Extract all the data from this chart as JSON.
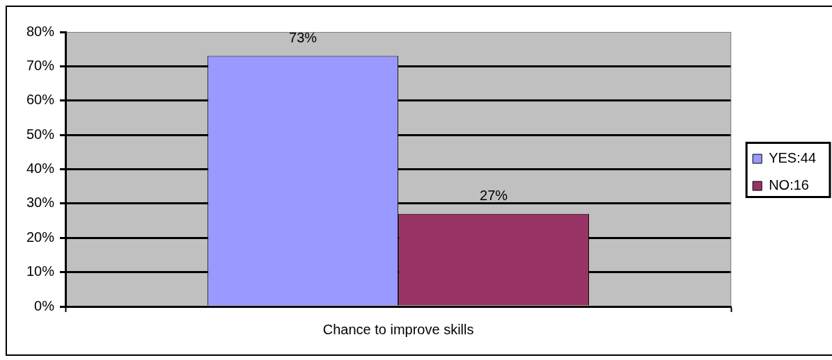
{
  "chart_data": {
    "type": "bar",
    "categories": [
      "Chance to improve skills"
    ],
    "series": [
      {
        "name": "YES:44",
        "color": "#9999ff",
        "values": [
          73
        ],
        "value_labels": [
          "73%"
        ]
      },
      {
        "name": "NO:16",
        "color": "#993366",
        "values": [
          27
        ],
        "value_labels": [
          "27%"
        ]
      }
    ],
    "ylim": [
      0,
      80
    ],
    "yticks": [
      {
        "value": 0,
        "label": "0%"
      },
      {
        "value": 10,
        "label": "10%"
      },
      {
        "value": 20,
        "label": "20%"
      },
      {
        "value": 30,
        "label": "30%"
      },
      {
        "value": 40,
        "label": "40%"
      },
      {
        "value": 50,
        "label": "50%"
      },
      {
        "value": 60,
        "label": "60%"
      },
      {
        "value": 70,
        "label": "70%"
      },
      {
        "value": 80,
        "label": "80%"
      }
    ],
    "grid": "y",
    "legend": "right"
  }
}
